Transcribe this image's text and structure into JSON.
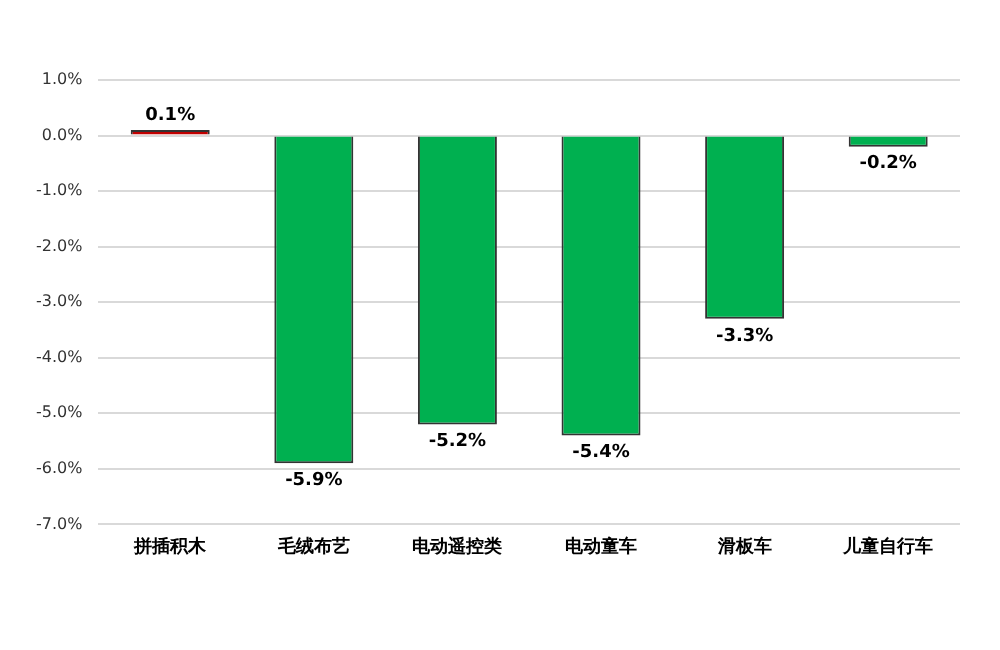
{
  "chart_data": {
    "type": "bar",
    "categories": [
      "拼插积木",
      "毛绒布艺",
      "电动遥控类",
      "电动童车",
      "滑板车",
      "儿童自行车"
    ],
    "values": [
      0.1,
      -5.9,
      -5.2,
      -5.4,
      -3.3,
      -0.2
    ],
    "colors": [
      "#c00000",
      "#00b050",
      "#00b050",
      "#00b050",
      "#00b050",
      "#00b050"
    ],
    "value_labels": [
      "0.1%",
      "-5.9%",
      "-5.2%",
      "-5.4%",
      "-3.3%",
      "-0.2%"
    ],
    "ylim": [
      -7,
      1
    ],
    "yticks": [
      {
        "value": 1,
        "label": "1.0%"
      },
      {
        "value": 0,
        "label": "0.0%"
      },
      {
        "value": -1,
        "label": "-1.0%"
      },
      {
        "value": -2,
        "label": "-2.0%"
      },
      {
        "value": -3,
        "label": "-3.0%"
      },
      {
        "value": -4,
        "label": "-4.0%"
      },
      {
        "value": -5,
        "label": "-5.0%"
      },
      {
        "value": -6,
        "label": "-6.0%"
      },
      {
        "value": -7,
        "label": "-7.0%"
      }
    ],
    "grid": "y",
    "legend": false
  }
}
